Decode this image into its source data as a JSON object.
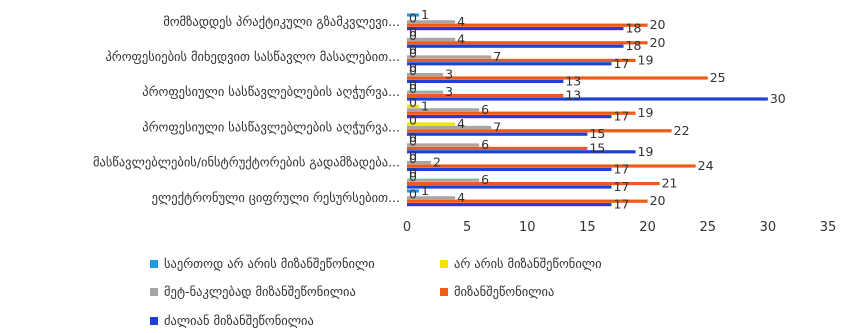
{
  "chart_data": {
    "type": "bar",
    "orientation": "horizontal",
    "categories": [
      "მომზადდეს პრაქტიკული გზამკვლევი...",
      "",
      "პროფესიების მიხედვით სასწავლო მასალებით...",
      "",
      "პროფესიული სასწავლებლების აღჭურვა...",
      "",
      "პროფესიული სასწავლებლების აღჭურვა...",
      "",
      "მასწავლებლების/ინსტრუქტორების გადამზადება...",
      "",
      "ელექტრონული ციფრული რესურსებით..."
    ],
    "series": [
      {
        "name": "საერთოდ არ არის მიზანშეწონილი",
        "color": "#1f9de0",
        "values": [
          1,
          0,
          0,
          0,
          0,
          0,
          0,
          0,
          0,
          0,
          1
        ]
      },
      {
        "name": "არ არის მიზანშეწონილი",
        "color": "#f2e600",
        "values": [
          0,
          0,
          0,
          0,
          0,
          1,
          4,
          0,
          0,
          0,
          0
        ]
      },
      {
        "name": "მეტ-ნაკლებად მიზანშეწონილია",
        "color": "#a6a6a6",
        "values": [
          4,
          4,
          7,
          3,
          3,
          6,
          7,
          6,
          2,
          6,
          4
        ]
      },
      {
        "name": "მიზანშეწონილია",
        "color": "#f05a14",
        "values": [
          20,
          20,
          19,
          25,
          13,
          19,
          22,
          15,
          24,
          21,
          20
        ]
      },
      {
        "name": "ძალიან მიზანშეწონილია",
        "color": "#1f3fd6",
        "values": [
          18,
          18,
          17,
          13,
          30,
          17,
          15,
          19,
          17,
          17,
          17
        ]
      }
    ],
    "xlim": [
      0,
      35
    ],
    "xticks": [
      0,
      5,
      10,
      15,
      20,
      25,
      30,
      35
    ],
    "grid": false,
    "legend_position": "bottom"
  }
}
